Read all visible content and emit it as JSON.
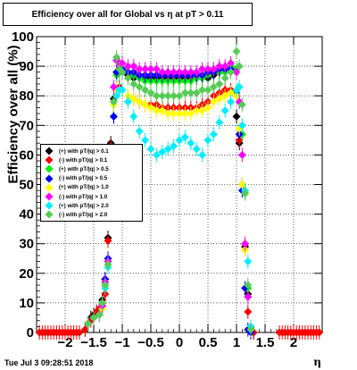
{
  "title": "Efficiency over all for Global vs   η at pT > 0.11",
  "timestamp": "Tue Jul  3 09:28:51 2018",
  "chart_data": {
    "type": "scatter",
    "title": "Efficiency over all for Global vs   η at pT > 0.11",
    "xlabel": "η",
    "ylabel": "Efficiency over all (%)",
    "xlim": [
      -2.5,
      2.5
    ],
    "ylim": [
      0,
      100
    ],
    "xticks": [
      -2,
      -1.5,
      -1,
      -0.5,
      0,
      0.5,
      1,
      1.5,
      2
    ],
    "xtick_labels": [
      "−2",
      "−1.5",
      "−1",
      "−0.5",
      "0",
      "0.5",
      "1",
      "1.5",
      "2"
    ],
    "yticks": [
      0,
      10,
      20,
      30,
      40,
      50,
      60,
      70,
      80,
      90,
      100
    ],
    "grid": true,
    "legend_position": "middle-left",
    "series": [
      {
        "name": "(+) with pT/|q| > 0.1",
        "color": "#000000",
        "x": [
          -1.65,
          -1.6,
          -1.55,
          -1.5,
          -1.45,
          -1.4,
          -1.35,
          -1.3,
          -1.25,
          -1.2,
          -1.15,
          -1.1,
          -1.05,
          -1.0,
          -0.9,
          -0.8,
          -0.7,
          -0.6,
          -0.5,
          -0.4,
          -0.3,
          -0.2,
          -0.1,
          0.0,
          0.1,
          0.2,
          0.3,
          0.4,
          0.5,
          0.6,
          0.7,
          0.8,
          0.9,
          1.0,
          1.05,
          1.1,
          1.15,
          1.2,
          1.25,
          1.3
        ],
        "y": [
          1,
          3,
          5,
          6,
          7,
          8,
          11,
          18,
          32,
          64,
          79,
          88,
          89,
          88,
          87,
          86,
          86,
          86,
          86,
          86,
          86,
          86,
          86,
          86,
          86,
          86,
          86,
          86,
          86,
          87,
          88,
          89,
          90,
          73,
          64,
          50,
          29,
          13,
          1,
          0
        ]
      },
      {
        "name": "(-) with pT/|q| > 0.1",
        "color": "#ff0000",
        "x": [
          -1.65,
          -1.6,
          -1.55,
          -1.5,
          -1.45,
          -1.4,
          -1.35,
          -1.3,
          -1.25,
          -1.2,
          -1.15,
          -1.1,
          -1.05,
          -1.0,
          -0.9,
          -0.8,
          -0.7,
          -0.6,
          -0.5,
          -0.4,
          -0.3,
          -0.2,
          -0.1,
          0.0,
          0.1,
          0.2,
          0.3,
          0.4,
          0.5,
          0.6,
          0.7,
          0.8,
          0.9,
          1.0,
          1.05,
          1.1,
          1.15,
          1.2,
          1.25,
          1.3
        ],
        "y": [
          1,
          3,
          4,
          5,
          7,
          8,
          10,
          13,
          31,
          63,
          73,
          82,
          83,
          82,
          80,
          79,
          78,
          77,
          77,
          77,
          76,
          76,
          76,
          76,
          76,
          76,
          76,
          77,
          78,
          80,
          81,
          82,
          82,
          80,
          65,
          50,
          28,
          7,
          1,
          0
        ]
      },
      {
        "name": "(+) with pT/|q| > 0.5",
        "color": "#00ee00",
        "x": [
          -1.6,
          -1.5,
          -1.4,
          -1.35,
          -1.3,
          -1.25,
          -1.2,
          -1.15,
          -1.1,
          -1.05,
          -1.0,
          -0.9,
          -0.8,
          -0.7,
          -0.6,
          -0.5,
          -0.4,
          -0.3,
          -0.2,
          -0.1,
          0.0,
          0.1,
          0.2,
          0.3,
          0.4,
          0.5,
          0.6,
          0.7,
          0.8,
          0.9,
          1.0,
          1.05,
          1.1,
          1.15,
          1.2,
          1.25
        ],
        "y": [
          3,
          5,
          6,
          9,
          16,
          22,
          46,
          73,
          87,
          88,
          89,
          88,
          87,
          86,
          85,
          85,
          85,
          85,
          85,
          85,
          85,
          85,
          85,
          86,
          86,
          87,
          88,
          88,
          88,
          90,
          89,
          78,
          67,
          47,
          15,
          1
        ]
      },
      {
        "name": "(-) with pT/|q| > 0.5",
        "color": "#0000ff",
        "x": [
          -1.6,
          -1.5,
          -1.4,
          -1.35,
          -1.3,
          -1.25,
          -1.2,
          -1.15,
          -1.1,
          -1.05,
          -1.0,
          -0.9,
          -0.8,
          -0.7,
          -0.6,
          -0.5,
          -0.4,
          -0.3,
          -0.2,
          -0.1,
          0.0,
          0.1,
          0.2,
          0.3,
          0.4,
          0.5,
          0.6,
          0.7,
          0.8,
          0.9,
          1.0,
          1.05,
          1.1,
          1.15,
          1.2,
          1.25
        ],
        "y": [
          3,
          5,
          6,
          9,
          18,
          25,
          47,
          73,
          88,
          89,
          89,
          88,
          88,
          87,
          87,
          87,
          87,
          87,
          87,
          87,
          87,
          87,
          87,
          87,
          87,
          88,
          88,
          89,
          89,
          89,
          81,
          67,
          48,
          15,
          1,
          0
        ]
      },
      {
        "name": "(+) with pT/|q| > 1.0",
        "color": "#ffff00",
        "x": [
          -1.6,
          -1.5,
          -1.4,
          -1.35,
          -1.3,
          -1.25,
          -1.2,
          -1.15,
          -1.1,
          -1.05,
          -1.0,
          -0.9,
          -0.8,
          -0.7,
          -0.6,
          -0.5,
          -0.4,
          -0.3,
          -0.2,
          -0.1,
          0.0,
          0.1,
          0.2,
          0.3,
          0.4,
          0.5,
          0.6,
          0.7,
          0.8,
          0.9,
          1.0,
          1.05,
          1.1,
          1.15,
          1.2,
          1.25
        ],
        "y": [
          3,
          5,
          6,
          8,
          16,
          22,
          52,
          77,
          82,
          82,
          82,
          80,
          79,
          78,
          77,
          76,
          75,
          75,
          74,
          74,
          74,
          74,
          74,
          75,
          75,
          76,
          78,
          79,
          80,
          81,
          80,
          69,
          50,
          28,
          12,
          1
        ]
      },
      {
        "name": "(-) with pT/|q| > 1.0",
        "color": "#ff00ff",
        "x": [
          -1.6,
          -1.5,
          -1.4,
          -1.35,
          -1.3,
          -1.25,
          -1.2,
          -1.15,
          -1.1,
          -1.05,
          -1.0,
          -0.9,
          -0.8,
          -0.7,
          -0.6,
          -0.5,
          -0.4,
          -0.3,
          -0.2,
          -0.1,
          0.0,
          0.1,
          0.2,
          0.3,
          0.4,
          0.5,
          0.6,
          0.7,
          0.8,
          0.9,
          1.0,
          1.05,
          1.1,
          1.15,
          1.2,
          1.25
        ],
        "y": [
          3,
          5,
          6,
          9,
          17,
          24,
          55,
          83,
          92,
          91,
          91,
          90,
          90,
          89,
          89,
          89,
          89,
          88,
          88,
          88,
          88,
          88,
          88,
          88,
          89,
          89,
          89,
          90,
          90,
          91,
          88,
          78,
          60,
          30,
          12,
          1
        ]
      },
      {
        "name": "(+) with pT/|q| > 2.0",
        "color": "#00eeff",
        "x": [
          -1.6,
          -1.5,
          -1.4,
          -1.35,
          -1.3,
          -1.25,
          -1.2,
          -1.15,
          -1.1,
          -1.05,
          -1.0,
          -0.9,
          -0.8,
          -0.7,
          -0.6,
          -0.5,
          -0.4,
          -0.3,
          -0.2,
          -0.1,
          0.0,
          0.1,
          0.2,
          0.3,
          0.4,
          0.5,
          0.6,
          0.7,
          0.8,
          0.9,
          1.0,
          1.05,
          1.1,
          1.15,
          1.2,
          1.25
        ],
        "y": [
          3,
          5,
          6,
          10,
          15,
          22,
          46,
          60,
          80,
          82,
          82,
          78,
          73,
          68,
          65,
          62,
          60,
          61,
          62,
          63,
          65,
          66,
          64,
          62,
          60,
          65,
          67,
          71,
          75,
          78,
          82,
          83,
          70,
          48,
          24,
          2
        ]
      },
      {
        "name": "(-) with pT/|q| > 2.0",
        "color": "#55cc55",
        "x": [
          -1.6,
          -1.5,
          -1.4,
          -1.35,
          -1.3,
          -1.25,
          -1.2,
          -1.15,
          -1.1,
          -1.05,
          -1.0,
          -0.9,
          -0.8,
          -0.7,
          -0.6,
          -0.5,
          -0.4,
          -0.3,
          -0.2,
          -0.1,
          0.0,
          0.1,
          0.2,
          0.3,
          0.4,
          0.5,
          0.6,
          0.7,
          0.8,
          0.9,
          1.0,
          1.05,
          1.1,
          1.15,
          1.2,
          1.25
        ],
        "y": [
          3,
          5,
          6,
          10,
          16,
          23,
          55,
          78,
          93,
          89,
          88,
          86,
          84,
          83,
          82,
          81,
          80,
          80,
          80,
          80,
          80,
          81,
          81,
          81,
          82,
          82,
          83,
          84,
          86,
          88,
          95,
          90,
          77,
          47,
          16,
          1
        ]
      }
    ],
    "zero_points": {
      "color": "#ff0000",
      "x": [
        -2.45,
        -2.4,
        -2.35,
        -2.3,
        -2.25,
        -2.2,
        -2.15,
        -2.1,
        -2.05,
        -2.0,
        -1.95,
        -1.9,
        -1.85,
        -1.8,
        -1.75,
        1.75,
        1.8,
        1.85,
        1.9,
        1.95,
        2.0,
        2.05,
        2.1,
        2.15,
        2.2,
        2.25,
        2.3,
        2.35,
        2.4,
        2.45
      ],
      "y": 0
    }
  },
  "legend": {
    "entries": [
      {
        "label": "(+) with pT/|q| > 0.1",
        "color": "#000000"
      },
      {
        "label": "(-) with pT/|q| > 0.1",
        "color": "#ff0000"
      },
      {
        "label": "(+) with pT/|q| > 0.5",
        "color": "#00ee00"
      },
      {
        "label": "(-) with pT/|q| > 0.5",
        "color": "#0000ff"
      },
      {
        "label": "(+) with pT/|q| > 1.0",
        "color": "#ffff00"
      },
      {
        "label": "(-) with pT/|q| > 1.0",
        "color": "#ff00ff"
      },
      {
        "label": "(+) with pT/|q| > 2.0",
        "color": "#00eeff"
      },
      {
        "label": "(-) with pT/|q| > 2.0",
        "color": "#55cc55"
      }
    ]
  }
}
